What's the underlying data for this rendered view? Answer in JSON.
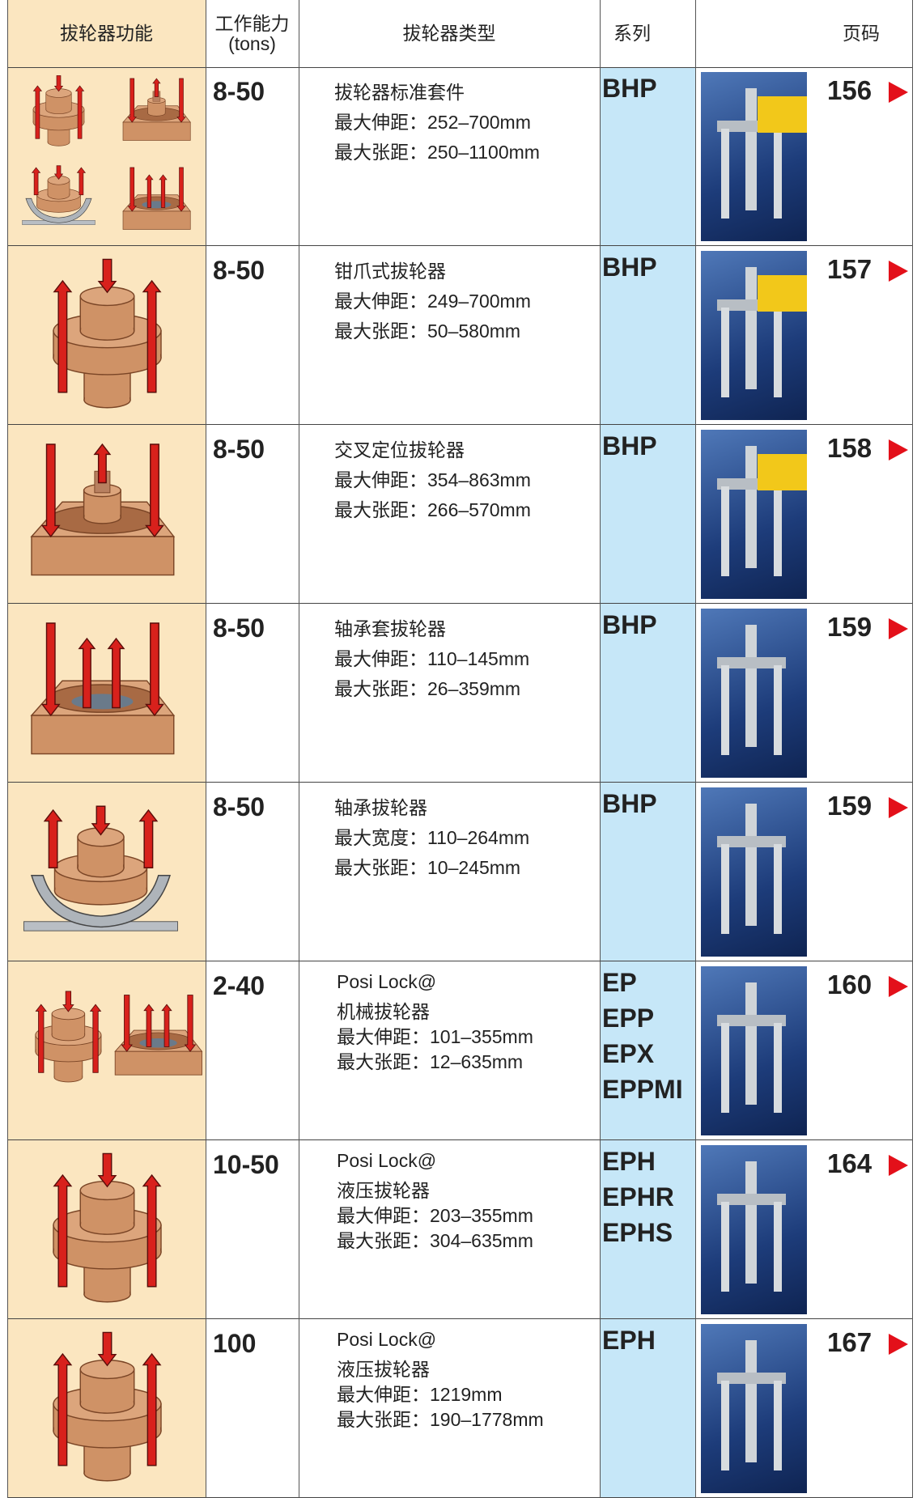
{
  "header": {
    "function": "拔轮器功能",
    "capacity": "工作能力",
    "capacity_unit": "(tons)",
    "type": "拔轮器类型",
    "series": "系列",
    "page": "页码"
  },
  "rows": [
    {
      "capacity": "8-50",
      "type": [
        "拔轮器标准套件",
        "最大伸距：252–700mm",
        "最大张距：250–1100mm"
      ],
      "series": [
        "BHP"
      ],
      "page": "156"
    },
    {
      "capacity": "8-50",
      "type": [
        "钳爪式拔轮器",
        "最大伸距：249–700mm",
        "最大张距：50–580mm"
      ],
      "series": [
        "BHP"
      ],
      "page": "157"
    },
    {
      "capacity": "8-50",
      "type": [
        "交叉定位拔轮器",
        "最大伸距：354–863mm",
        "最大张距：266–570mm"
      ],
      "series": [
        "BHP"
      ],
      "page": "158"
    },
    {
      "capacity": "8-50",
      "type": [
        "轴承套拔轮器",
        "最大伸距：110–145mm",
        "最大张距：26–359mm"
      ],
      "series": [
        "BHP"
      ],
      "page": "159"
    },
    {
      "capacity": "8-50",
      "type": [
        "轴承拔轮器",
        "最大宽度：110–264mm",
        "最大张距：10–245mm"
      ],
      "series": [
        "BHP"
      ],
      "page": "159"
    },
    {
      "capacity": "2-40",
      "type": [
        "Posi Lock@",
        "机械拔轮器",
        "最大伸距：101–355mm",
        "最大张距：12–635mm"
      ],
      "series": [
        "EP",
        "EPP",
        "EPX",
        "EPPMI"
      ],
      "page": "160"
    },
    {
      "capacity": "10-50",
      "type": [
        "Posi Lock@",
        "液压拔轮器",
        "最大伸距：203–355mm",
        "最大张距：304–635mm"
      ],
      "series": [
        "EPH",
        "EPHR",
        "EPHS"
      ],
      "page": "164"
    },
    {
      "capacity": "100",
      "type": [
        "Posi Lock@",
        "液压拔轮器",
        "最大伸距：1219mm",
        "最大张距：190–1778mm"
      ],
      "series": [
        "EPH"
      ],
      "page": "167"
    }
  ]
}
